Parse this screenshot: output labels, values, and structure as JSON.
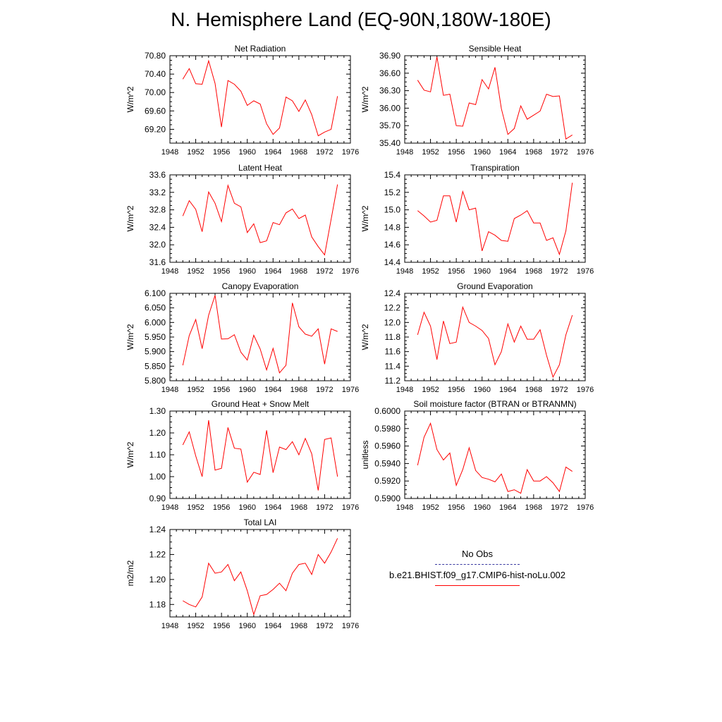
{
  "figure": {
    "title": "N. Hemisphere Land (EQ-90N,180W-180E)"
  },
  "legend": {
    "entries": [
      {
        "label": "No Obs",
        "color": "#3a3aa0",
        "style": "dashed"
      },
      {
        "label": "b.e21.BHIST.f09_g17.CMIP6-hist-noLu.002",
        "color": "#ff0000",
        "style": "solid"
      }
    ]
  },
  "chart_data": [
    {
      "type": "line",
      "title": "Net Radiation",
      "ylabel": "W/m^2",
      "xlim": [
        1948,
        1976
      ],
      "ylim": [
        68.9,
        70.8
      ],
      "xticks": [
        1948,
        1952,
        1956,
        1960,
        1964,
        1968,
        1972,
        1976
      ],
      "yticks": [
        "69.20",
        "69.60",
        "70.00",
        "70.40",
        "70.80"
      ],
      "series": [
        {
          "color": "#ff0000",
          "x": [
            1950,
            1951,
            1952,
            1953,
            1954,
            1955,
            1956,
            1957,
            1958,
            1959,
            1960,
            1961,
            1962,
            1963,
            1964,
            1965,
            1966,
            1967,
            1968,
            1969,
            1970,
            1971,
            1972,
            1973,
            1974
          ],
          "values": [
            70.29,
            70.52,
            70.19,
            70.18,
            70.69,
            70.2,
            69.25,
            70.26,
            70.18,
            70.03,
            69.72,
            69.82,
            69.75,
            69.32,
            69.09,
            69.23,
            69.9,
            69.82,
            69.59,
            69.84,
            69.52,
            69.06,
            69.14,
            69.2,
            69.92
          ]
        }
      ]
    },
    {
      "type": "line",
      "title": "Sensible Heat",
      "ylabel": "W/m^2",
      "xlim": [
        1948,
        1976
      ],
      "ylim": [
        35.4,
        36.9
      ],
      "xticks": [
        1948,
        1952,
        1956,
        1960,
        1964,
        1968,
        1972,
        1976
      ],
      "yticks": [
        "35.40",
        "35.70",
        "36.00",
        "36.30",
        "36.60",
        "36.90"
      ],
      "series": [
        {
          "color": "#ff0000",
          "x": [
            1950,
            1951,
            1952,
            1953,
            1954,
            1955,
            1956,
            1957,
            1958,
            1959,
            1960,
            1961,
            1962,
            1963,
            1964,
            1965,
            1966,
            1967,
            1968,
            1969,
            1970,
            1971,
            1972,
            1973,
            1974
          ],
          "values": [
            36.48,
            36.31,
            36.28,
            36.88,
            36.22,
            36.24,
            35.7,
            35.69,
            36.09,
            36.06,
            36.49,
            36.33,
            36.7,
            35.99,
            35.55,
            35.65,
            36.04,
            35.81,
            35.88,
            35.95,
            36.24,
            36.2,
            36.21,
            35.47,
            35.54
          ]
        }
      ]
    },
    {
      "type": "line",
      "title": "Latent Heat",
      "ylabel": "W/m^2",
      "xlim": [
        1948,
        1976
      ],
      "ylim": [
        31.6,
        33.6
      ],
      "xticks": [
        1948,
        1952,
        1956,
        1960,
        1964,
        1968,
        1972,
        1976
      ],
      "yticks": [
        "31.6",
        "32.0",
        "32.4",
        "32.8",
        "33.2",
        "33.6"
      ],
      "series": [
        {
          "color": "#ff0000",
          "x": [
            1950,
            1951,
            1952,
            1953,
            1954,
            1955,
            1956,
            1957,
            1958,
            1959,
            1960,
            1961,
            1962,
            1963,
            1964,
            1965,
            1966,
            1967,
            1968,
            1969,
            1970,
            1971,
            1972,
            1973,
            1974
          ],
          "values": [
            32.66,
            33.01,
            32.81,
            32.3,
            33.21,
            32.95,
            32.53,
            33.36,
            32.95,
            32.87,
            32.28,
            32.48,
            32.05,
            32.09,
            32.51,
            32.46,
            32.73,
            32.82,
            32.6,
            32.68,
            32.18,
            31.96,
            31.77,
            32.58,
            33.38
          ]
        }
      ]
    },
    {
      "type": "line",
      "title": "Transpiration",
      "ylabel": "W/m^2",
      "xlim": [
        1948,
        1976
      ],
      "ylim": [
        14.4,
        15.4
      ],
      "xticks": [
        1948,
        1952,
        1956,
        1960,
        1964,
        1968,
        1972,
        1976
      ],
      "yticks": [
        "14.4",
        "14.6",
        "14.8",
        "15.0",
        "15.2",
        "15.4"
      ],
      "series": [
        {
          "color": "#ff0000",
          "x": [
            1950,
            1951,
            1952,
            1953,
            1954,
            1955,
            1956,
            1957,
            1958,
            1959,
            1960,
            1961,
            1962,
            1963,
            1964,
            1965,
            1966,
            1967,
            1968,
            1969,
            1970,
            1971,
            1972,
            1973,
            1974
          ],
          "values": [
            14.99,
            14.93,
            14.86,
            14.88,
            15.16,
            15.16,
            14.86,
            15.21,
            15.0,
            15.02,
            14.53,
            14.75,
            14.71,
            14.65,
            14.64,
            14.9,
            14.94,
            14.99,
            14.85,
            14.85,
            14.65,
            14.68,
            14.49,
            14.76,
            15.31
          ]
        }
      ]
    },
    {
      "type": "line",
      "title": "Canopy Evaporation",
      "ylabel": "W/m^2",
      "xlim": [
        1948,
        1976
      ],
      "ylim": [
        5.8,
        6.1
      ],
      "xticks": [
        1948,
        1952,
        1956,
        1960,
        1964,
        1968,
        1972,
        1976
      ],
      "yticks": [
        "5.800",
        "5.850",
        "5.900",
        "5.950",
        "6.000",
        "6.050",
        "6.100"
      ],
      "series": [
        {
          "color": "#ff0000",
          "x": [
            1950,
            1951,
            1952,
            1953,
            1954,
            1955,
            1956,
            1957,
            1958,
            1959,
            1960,
            1961,
            1962,
            1963,
            1964,
            1965,
            1966,
            1967,
            1968,
            1969,
            1970,
            1971,
            1972,
            1973,
            1974
          ],
          "values": [
            5.853,
            5.955,
            6.01,
            5.91,
            6.025,
            6.093,
            5.943,
            5.944,
            5.958,
            5.898,
            5.871,
            5.956,
            5.909,
            5.837,
            5.911,
            5.827,
            5.853,
            6.067,
            5.985,
            5.96,
            5.953,
            5.978,
            5.857,
            5.978,
            5.969
          ]
        }
      ]
    },
    {
      "type": "line",
      "title": "Ground Evaporation",
      "ylabel": "W/m^2",
      "xlim": [
        1948,
        1976
      ],
      "ylim": [
        11.2,
        12.4
      ],
      "xticks": [
        1948,
        1952,
        1956,
        1960,
        1964,
        1968,
        1972,
        1976
      ],
      "yticks": [
        "11.2",
        "11.4",
        "11.6",
        "11.8",
        "12.0",
        "12.2",
        "12.4"
      ],
      "series": [
        {
          "color": "#ff0000",
          "x": [
            1950,
            1951,
            1952,
            1953,
            1954,
            1955,
            1956,
            1957,
            1958,
            1959,
            1960,
            1961,
            1962,
            1963,
            1964,
            1965,
            1966,
            1967,
            1968,
            1969,
            1970,
            1971,
            1972,
            1973,
            1974
          ],
          "values": [
            11.83,
            12.14,
            11.95,
            11.49,
            12.02,
            11.71,
            11.73,
            12.21,
            12.0,
            11.95,
            11.89,
            11.78,
            11.42,
            11.6,
            11.98,
            11.73,
            11.95,
            11.77,
            11.77,
            11.9,
            11.55,
            11.25,
            11.42,
            11.83,
            12.1
          ]
        }
      ]
    },
    {
      "type": "line",
      "title": "Ground Heat + Snow Melt",
      "ylabel": "W/m^2",
      "xlim": [
        1948,
        1976
      ],
      "ylim": [
        0.9,
        1.3
      ],
      "xticks": [
        1948,
        1952,
        1956,
        1960,
        1964,
        1968,
        1972,
        1976
      ],
      "yticks": [
        "0.90",
        "1.00",
        "1.10",
        "1.20",
        "1.30"
      ],
      "series": [
        {
          "color": "#ff0000",
          "x": [
            1950,
            1951,
            1952,
            1953,
            1954,
            1955,
            1956,
            1957,
            1958,
            1959,
            1960,
            1961,
            1962,
            1963,
            1964,
            1965,
            1966,
            1967,
            1968,
            1969,
            1970,
            1971,
            1972,
            1973,
            1974
          ],
          "values": [
            1.145,
            1.205,
            1.095,
            1.0,
            1.258,
            1.03,
            1.038,
            1.225,
            1.13,
            1.126,
            0.975,
            1.02,
            1.01,
            1.212,
            1.018,
            1.135,
            1.124,
            1.16,
            1.1,
            1.175,
            1.105,
            0.937,
            1.17,
            1.177,
            1.0
          ]
        }
      ]
    },
    {
      "type": "line",
      "title": "Soil moisture factor (BTRAN or BTRANMN)",
      "ylabel": "unitless",
      "xlim": [
        1948,
        1976
      ],
      "ylim": [
        0.59,
        0.6
      ],
      "xticks": [
        1948,
        1952,
        1956,
        1960,
        1964,
        1968,
        1972,
        1976
      ],
      "yticks": [
        "0.5900",
        "0.5920",
        "0.5940",
        "0.5960",
        "0.5980",
        "0.6000"
      ],
      "series": [
        {
          "color": "#ff0000",
          "x": [
            1950,
            1951,
            1952,
            1953,
            1954,
            1955,
            1956,
            1957,
            1958,
            1959,
            1960,
            1961,
            1962,
            1963,
            1964,
            1965,
            1966,
            1967,
            1968,
            1969,
            1970,
            1971,
            1972,
            1973,
            1974
          ],
          "values": [
            0.5938,
            0.597,
            0.5986,
            0.5956,
            0.5944,
            0.5952,
            0.5915,
            0.5933,
            0.5958,
            0.5932,
            0.5924,
            0.5922,
            0.5919,
            0.5928,
            0.5908,
            0.591,
            0.5906,
            0.5933,
            0.592,
            0.592,
            0.5925,
            0.5918,
            0.5908,
            0.5936,
            0.5931
          ]
        }
      ]
    },
    {
      "type": "line",
      "title": "Total LAI",
      "ylabel": "m2/m2",
      "xlim": [
        1948,
        1976
      ],
      "ylim": [
        1.17,
        1.24
      ],
      "xticks": [
        1948,
        1952,
        1956,
        1960,
        1964,
        1968,
        1972,
        1976
      ],
      "yticks": [
        "1.18",
        "1.20",
        "1.22",
        "1.24"
      ],
      "series": [
        {
          "color": "#ff0000",
          "x": [
            1950,
            1951,
            1952,
            1953,
            1954,
            1955,
            1956,
            1957,
            1958,
            1959,
            1960,
            1961,
            1962,
            1963,
            1964,
            1965,
            1966,
            1967,
            1968,
            1969,
            1970,
            1971,
            1972,
            1973,
            1974
          ],
          "values": [
            1.183,
            1.18,
            1.178,
            1.186,
            1.213,
            1.205,
            1.206,
            1.212,
            1.199,
            1.206,
            1.191,
            1.172,
            1.187,
            1.188,
            1.192,
            1.197,
            1.191,
            1.205,
            1.212,
            1.213,
            1.204,
            1.22,
            1.213,
            1.222,
            1.233
          ]
        }
      ]
    }
  ]
}
